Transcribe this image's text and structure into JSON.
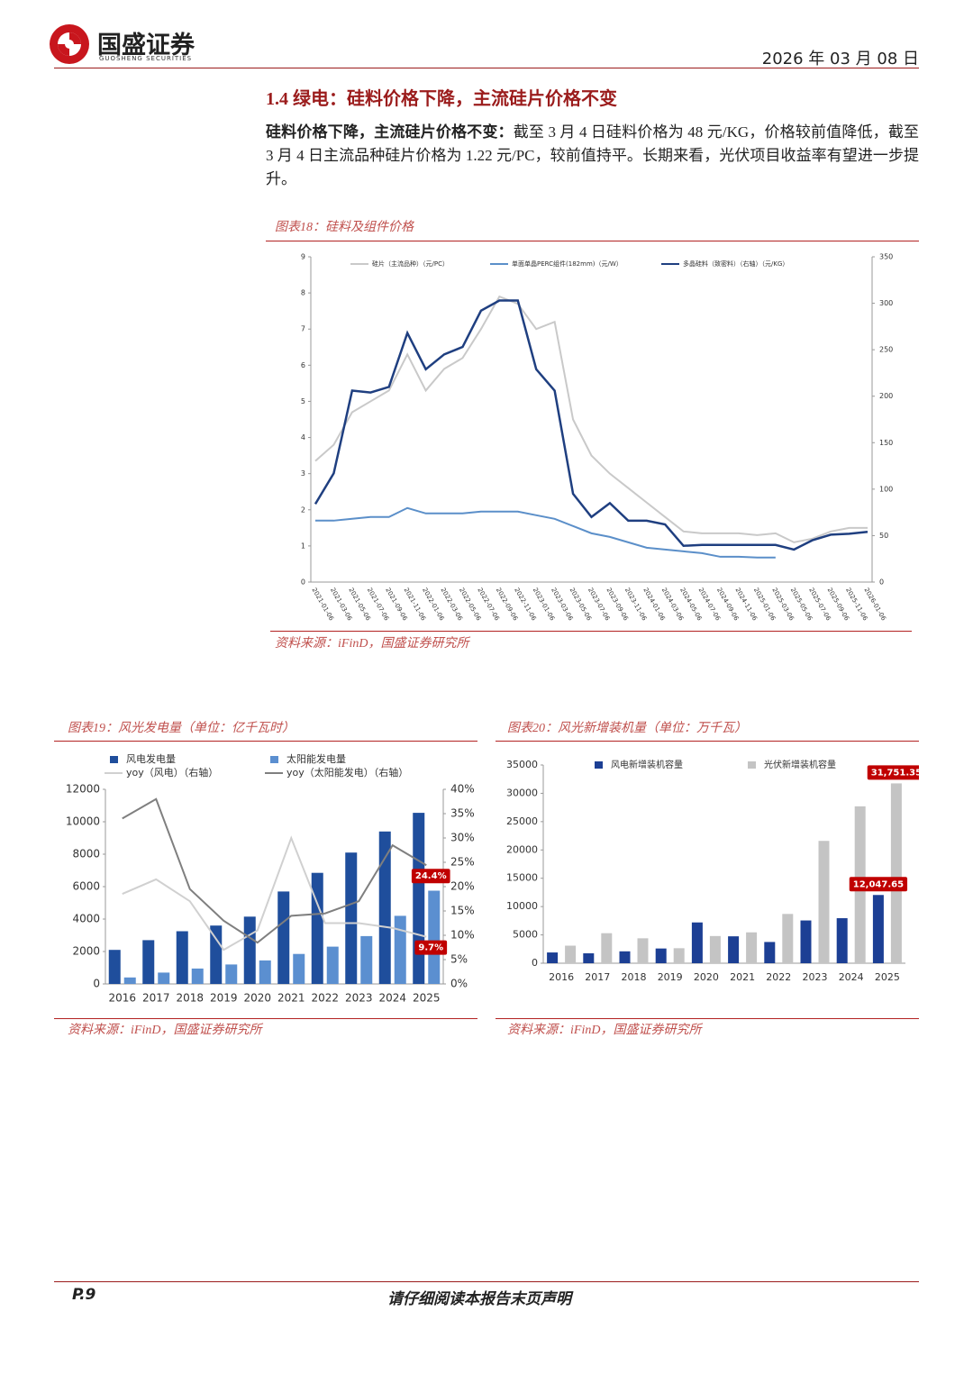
{
  "header": {
    "logo": "国盛证券",
    "logo_sub": "GUOSHENG SECURITIES",
    "date": "2026 年 03 月 08 日"
  },
  "section": {
    "title": "1.4 绿电：硅料价格下降，主流硅片价格不变",
    "lead": "硅料价格下降，主流硅片价格不变：",
    "body": "截至 3 月 4 日硅料价格为 48 元/KG，价格较前值降低，截至 3 月 4 日主流品种硅片价格为 1.22 元/PC，较前值持平。长期来看，光伏项目收益率有望进一步提升。"
  },
  "chart_data": [
    {
      "type": "line",
      "title": "图表18：硅料及组件价格",
      "source": "资料来源：iFinD，国盛证券研究所",
      "categories": [
        "2021-01-06",
        "2021-03-06",
        "2021-05-06",
        "2021-07-06",
        "2021-09-06",
        "2021-11-06",
        "2022-01-06",
        "2022-03-06",
        "2022-05-06",
        "2022-07-06",
        "2022-09-06",
        "2022-11-06",
        "2023-01-06",
        "2023-03-06",
        "2023-05-06",
        "2023-07-06",
        "2023-09-06",
        "2023-11-06",
        "2024-01-06",
        "2024-03-06",
        "2024-05-06",
        "2024-07-06",
        "2024-09-06",
        "2024-11-06",
        "2025-01-06",
        "2025-03-06",
        "2025-05-06",
        "2025-07-06",
        "2025-09-06",
        "2025-11-06",
        "2026-01-06"
      ],
      "series": [
        {
          "name": "硅片（主流品种）（元/PC）",
          "color": "#c9c9c9",
          "values": [
            3.35,
            3.8,
            4.7,
            5.0,
            5.3,
            6.3,
            5.3,
            5.9,
            6.2,
            7.0,
            7.9,
            7.7,
            7.0,
            7.2,
            4.5,
            3.5,
            3.0,
            2.6,
            2.2,
            1.8,
            1.4,
            1.35,
            1.35,
            1.35,
            1.3,
            1.35,
            1.1,
            1.2,
            1.4,
            1.5,
            1.5
          ]
        },
        {
          "name": "单面单晶PERC组件(182mm)（元/W）",
          "color": "#5b8fc9",
          "values": [
            1.7,
            1.7,
            1.75,
            1.8,
            1.8,
            2.05,
            1.9,
            1.9,
            1.9,
            1.95,
            1.95,
            1.95,
            1.85,
            1.75,
            1.55,
            1.35,
            1.25,
            1.1,
            0.95,
            0.9,
            0.85,
            0.8,
            0.7,
            0.7,
            0.68,
            0.68,
            null,
            null,
            null,
            null,
            null
          ]
        },
        {
          "name": "多晶硅料（致密料）（右轴）（元/KG）",
          "color": "#1f3f80",
          "axis": "y2",
          "values": [
            84,
            117,
            206,
            204,
            210,
            268,
            229,
            245,
            253,
            292,
            303,
            303,
            229,
            206,
            95,
            70,
            85,
            66,
            66,
            62,
            39,
            40,
            40,
            40,
            40,
            40,
            35,
            45,
            51,
            52,
            54
          ]
        }
      ],
      "ylim": [
        0,
        9
      ],
      "yticks": [
        0,
        1,
        2,
        3,
        4,
        5,
        6,
        7,
        8,
        9
      ],
      "y2lim": [
        0,
        350
      ],
      "y2ticks": [
        0,
        50,
        100,
        150,
        200,
        250,
        300,
        350
      ]
    },
    {
      "type": "bar",
      "title": "图表19：风光发电量（单位：亿千瓦时）",
      "source": "资料来源：iFinD，国盛证券研究所",
      "categories": [
        "2016",
        "2017",
        "2018",
        "2019",
        "2020",
        "2021",
        "2022",
        "2023",
        "2024",
        "2025"
      ],
      "series": [
        {
          "name": "风电发电量",
          "color": "#1f4e9c",
          "type": "bar",
          "values": [
            2100,
            2700,
            3250,
            3600,
            4150,
            5700,
            6850,
            8100,
            9400,
            10550
          ]
        },
        {
          "name": "太阳能发电量",
          "color": "#5b8fd0",
          "type": "bar",
          "values": [
            400,
            700,
            950,
            1200,
            1450,
            1850,
            2300,
            2950,
            4200,
            5750
          ]
        },
        {
          "name": "yoy（风电）（右轴）",
          "color": "#d0d0d0",
          "type": "line",
          "axis": "y2",
          "values": [
            18.5,
            21.5,
            17,
            7,
            11,
            30,
            12.5,
            12.5,
            11.5,
            9.7
          ],
          "value_labels": [
            null,
            null,
            null,
            null,
            null,
            null,
            null,
            null,
            null,
            "9.7%"
          ]
        },
        {
          "name": "yoy（太阳能发电）（右轴）",
          "color": "#7f7f7f",
          "type": "line",
          "axis": "y2",
          "values": [
            34,
            38,
            19.5,
            13,
            8.5,
            14,
            14.5,
            17,
            28.5,
            24.4
          ],
          "value_labels": [
            null,
            null,
            null,
            null,
            null,
            null,
            null,
            null,
            null,
            "24.4%"
          ]
        }
      ],
      "ylim": [
        0,
        12000
      ],
      "yticks": [
        0,
        2000,
        4000,
        6000,
        8000,
        10000,
        12000
      ],
      "y2lim": [
        0,
        40
      ],
      "y2ticks": [
        {
          "value": 0,
          "label": "0%"
        },
        {
          "value": 5,
          "label": "5%"
        },
        {
          "value": 10,
          "label": "10%"
        },
        {
          "value": 15,
          "label": "15%"
        },
        {
          "value": 20,
          "label": "20%"
        },
        {
          "value": 25,
          "label": "25%"
        },
        {
          "value": 30,
          "label": "30%"
        },
        {
          "value": 35,
          "label": "35%"
        },
        {
          "value": 40,
          "label": "40%"
        }
      ]
    },
    {
      "type": "bar",
      "title": "图表20：风光新增装机量（单位：万千瓦）",
      "source": "资料来源：iFinD，国盛证券研究所",
      "categories": [
        "2016",
        "2017",
        "2018",
        "2019",
        "2020",
        "2021",
        "2022",
        "2023",
        "2024",
        "2025"
      ],
      "series": [
        {
          "name": "风电新增装机容量",
          "color": "#1c3f94",
          "values": [
            1900,
            1750,
            2100,
            2600,
            7200,
            4750,
            3750,
            7550,
            7950,
            12047.65
          ],
          "value_labels": [
            null,
            null,
            null,
            null,
            null,
            null,
            null,
            null,
            null,
            "12,047.65"
          ]
        },
        {
          "name": "光伏新增装机容量",
          "color": "#c4c4c4",
          "values": [
            3100,
            5300,
            4400,
            2650,
            4800,
            5450,
            8700,
            21600,
            27700,
            31751.35
          ],
          "value_labels": [
            null,
            null,
            null,
            null,
            null,
            null,
            null,
            null,
            null,
            "31,751.35"
          ]
        }
      ],
      "ylim": [
        0,
        35000
      ],
      "yticks": [
        0,
        5000,
        10000,
        15000,
        20000,
        25000,
        30000,
        35000
      ]
    }
  ],
  "footer": {
    "page": "P.9",
    "notice": "请仔细阅读本报告末页声明"
  }
}
